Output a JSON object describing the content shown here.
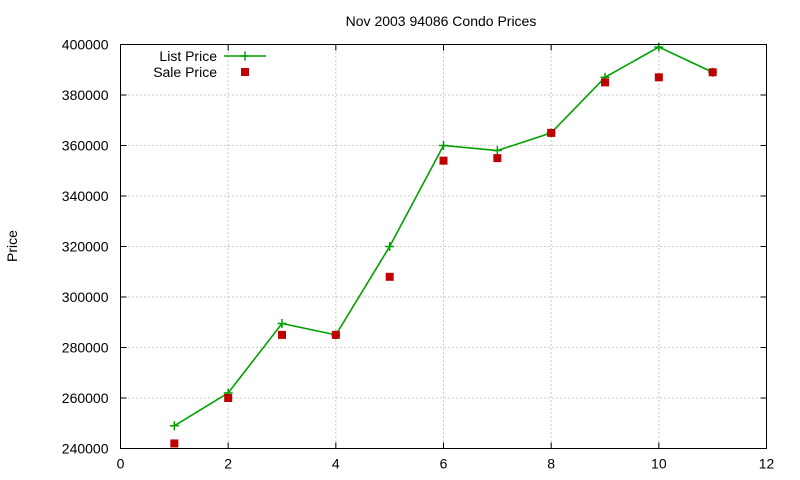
{
  "chart_data": {
    "type": "line",
    "title": "Nov 2003 94086 Condo Prices",
    "xlabel": "",
    "ylabel": "Price",
    "xlim": [
      0,
      12
    ],
    "ylim": [
      240000,
      400000
    ],
    "x_ticks": [
      0,
      2,
      4,
      6,
      8,
      10,
      12
    ],
    "y_ticks": [
      240000,
      260000,
      280000,
      300000,
      320000,
      340000,
      360000,
      380000,
      400000
    ],
    "grid": true,
    "legend_position": "top-left",
    "series": [
      {
        "name": "List Price",
        "style": "line+cross",
        "color": "#00a000",
        "points": [
          {
            "x": 1,
            "y": 249000
          },
          {
            "x": 2,
            "y": 262000
          },
          {
            "x": 3,
            "y": 289500
          },
          {
            "x": 4,
            "y": 285000
          },
          {
            "x": 5,
            "y": 320000
          },
          {
            "x": 6,
            "y": 360000
          },
          {
            "x": 7,
            "y": 358000
          },
          {
            "x": 8,
            "y": 365000
          },
          {
            "x": 9,
            "y": 387000
          },
          {
            "x": 10,
            "y": 399000
          },
          {
            "x": 11,
            "y": 389000
          }
        ]
      },
      {
        "name": "Sale Price",
        "style": "square",
        "color": "#c00000",
        "points": [
          {
            "x": 1,
            "y": 242000
          },
          {
            "x": 2,
            "y": 260000
          },
          {
            "x": 3,
            "y": 285000
          },
          {
            "x": 4,
            "y": 285000
          },
          {
            "x": 5,
            "y": 308000
          },
          {
            "x": 6,
            "y": 354000
          },
          {
            "x": 7,
            "y": 355000
          },
          {
            "x": 8,
            "y": 365000
          },
          {
            "x": 9,
            "y": 385000
          },
          {
            "x": 10,
            "y": 387000
          },
          {
            "x": 11,
            "y": 389000
          }
        ]
      }
    ]
  }
}
